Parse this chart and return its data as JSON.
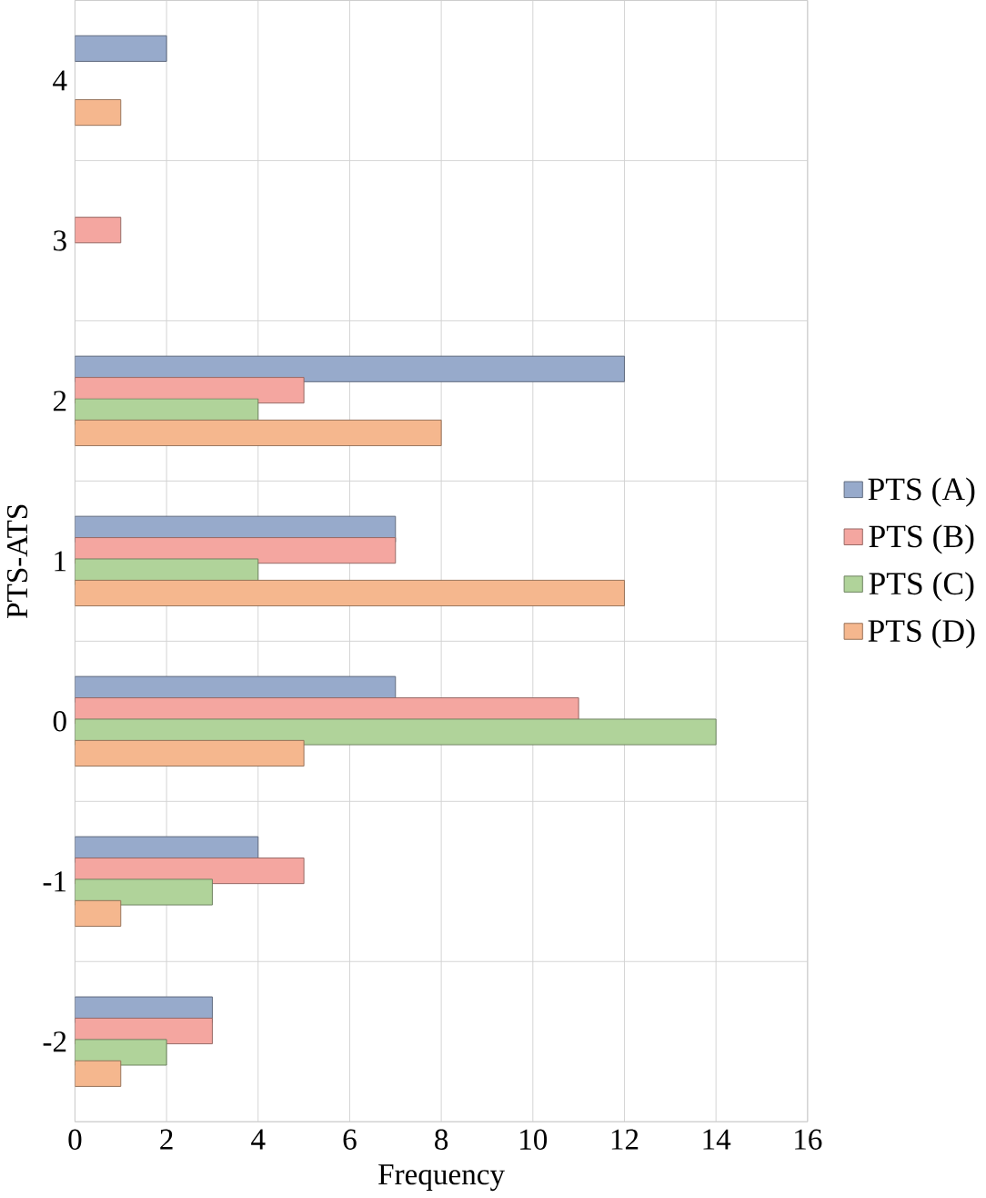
{
  "chart_data": {
    "type": "bar",
    "orientation": "horizontal",
    "xlabel": "Frequency",
    "ylabel": "PTS-ATS",
    "categories": [
      "4",
      "3",
      "2",
      "1",
      "0",
      "-1",
      "-2"
    ],
    "series": [
      {
        "name": "PTS (A)",
        "color": "#97aacb",
        "values": [
          2,
          null,
          12,
          7,
          7,
          4,
          3
        ]
      },
      {
        "name": "PTS (B)",
        "color": "#f4a6a0",
        "values": [
          null,
          1,
          5,
          7,
          11,
          5,
          3
        ]
      },
      {
        "name": "PTS (C)",
        "color": "#b0d39a",
        "values": [
          null,
          null,
          4,
          4,
          14,
          3,
          2
        ]
      },
      {
        "name": "PTS (D)",
        "color": "#f5b78e",
        "values": [
          1,
          null,
          8,
          12,
          5,
          1,
          1
        ]
      }
    ],
    "xlim": [
      0,
      16
    ],
    "xticks": [
      0,
      2,
      4,
      6,
      8,
      10,
      12,
      14,
      16
    ],
    "grid": true,
    "legend": "right"
  }
}
